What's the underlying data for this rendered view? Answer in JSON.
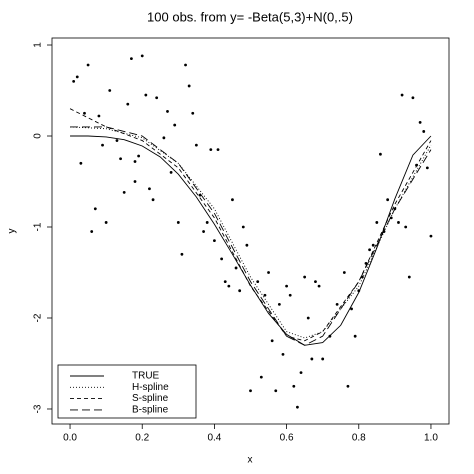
{
  "chart_data": {
    "type": "scatter",
    "title": "100 obs. from y= -Beta(5,3)+N(0,.5)",
    "xlabel": "x",
    "ylabel": "y",
    "xlim": [
      -0.05,
      1.05
    ],
    "ylim": [
      -3.165,
      1.077
    ],
    "xticks": [
      {
        "value": 0,
        "label": "0.0"
      },
      {
        "value": 0.2,
        "label": "0.2"
      },
      {
        "value": 0.4,
        "label": "0.4"
      },
      {
        "value": 0.6,
        "label": "0.6"
      },
      {
        "value": 0.8,
        "label": "0.8"
      },
      {
        "value": 1,
        "label": "1.0"
      }
    ],
    "yticks": [
      1,
      0,
      -1,
      -2,
      -3
    ],
    "legend": "bottom-left",
    "points": {
      "color": "#000",
      "x": [
        0.01,
        0.02,
        0.04,
        0.05,
        0.03,
        0.06,
        0.07,
        0.08,
        0.09,
        0.1,
        0.11,
        0.13,
        0.14,
        0.15,
        0.16,
        0.17,
        0.18,
        0.19,
        0.2,
        0.21,
        0.22,
        0.23,
        0.24,
        0.26,
        0.27,
        0.28,
        0.29,
        0.3,
        0.31,
        0.32,
        0.33,
        0.34,
        0.35,
        0.36,
        0.37,
        0.38,
        0.39,
        0.4,
        0.41,
        0.42,
        0.43,
        0.44,
        0.45,
        0.46,
        0.47,
        0.48,
        0.49,
        0.5,
        0.52,
        0.53,
        0.54,
        0.55,
        0.56,
        0.57,
        0.58,
        0.59,
        0.6,
        0.61,
        0.62,
        0.63,
        0.64,
        0.65,
        0.66,
        0.67,
        0.68,
        0.69,
        0.7,
        0.72,
        0.74,
        0.76,
        0.77,
        0.78,
        0.79,
        0.8,
        0.81,
        0.82,
        0.83,
        0.84,
        0.85,
        0.86,
        0.87,
        0.88,
        0.89,
        0.9,
        0.91,
        0.92,
        0.93,
        0.94,
        0.95,
        0.96,
        0.97,
        0.98,
        0.99,
        1.0,
        0.18
      ],
      "y": [
        0.6,
        0.65,
        0.25,
        0.78,
        -0.3,
        -1.05,
        -0.8,
        0.22,
        -0.1,
        -0.95,
        0.5,
        -0.05,
        -0.25,
        -0.62,
        0.35,
        0.85,
        -0.28,
        -0.22,
        0.88,
        0.45,
        -0.58,
        -0.7,
        0.42,
        -0.02,
        0.27,
        -0.4,
        0.12,
        -0.95,
        -1.3,
        0.78,
        0.55,
        0.25,
        -0.1,
        -0.65,
        -1.05,
        -0.95,
        -0.15,
        -1.15,
        -0.15,
        -1.35,
        -1.6,
        -1.65,
        -0.7,
        -1.45,
        -1.7,
        -1.0,
        -1.2,
        -2.8,
        -1.6,
        -2.65,
        -1.75,
        -1.5,
        -2.25,
        -2.8,
        -1.85,
        -2.4,
        -1.65,
        -1.75,
        -2.75,
        -2.98,
        -2.6,
        -1.55,
        -2.0,
        -2.45,
        -1.6,
        -1.65,
        -2.45,
        -2.2,
        -1.85,
        -1.5,
        -2.75,
        -1.9,
        -2.2,
        -1.7,
        -1.55,
        -1.4,
        -1.25,
        -1.2,
        -0.95,
        -0.2,
        -1.05,
        -0.7,
        -0.9,
        -0.8,
        -0.95,
        0.45,
        -1.0,
        -1.55,
        0.42,
        -0.32,
        0.15,
        0.05,
        -0.35,
        -1.1,
        -0.5
      ]
    },
    "lines": [
      {
        "name": "TRUE",
        "color": "#000",
        "dash": "none",
        "x": [
          0,
          0.05,
          0.1,
          0.15,
          0.2,
          0.25,
          0.3,
          0.35,
          0.4,
          0.45,
          0.5,
          0.55,
          0.6,
          0.65,
          0.7,
          0.75,
          0.8,
          0.85,
          0.9,
          0.95,
          1
        ],
        "y": [
          0,
          0,
          -0.01,
          -0.04,
          -0.11,
          -0.23,
          -0.42,
          -0.67,
          -0.97,
          -1.3,
          -1.64,
          -1.95,
          -2.18,
          -2.3,
          -2.27,
          -2.08,
          -1.72,
          -1.23,
          -0.69,
          -0.21,
          0
        ]
      },
      {
        "name": "H-spline",
        "color": "#000",
        "dash": "1,2",
        "x": [
          0,
          0.1,
          0.2,
          0.3,
          0.4,
          0.5,
          0.6,
          0.65,
          0.7,
          0.8,
          0.9,
          1
        ],
        "y": [
          0.1,
          0.08,
          -0.02,
          -0.3,
          -0.8,
          -1.55,
          -2.15,
          -2.22,
          -2.15,
          -1.65,
          -0.8,
          -0.1
        ]
      },
      {
        "name": "S-spline",
        "color": "#000",
        "dash": "4,3",
        "x": [
          0,
          0.1,
          0.2,
          0.3,
          0.4,
          0.5,
          0.6,
          0.65,
          0.7,
          0.8,
          0.9,
          1
        ],
        "y": [
          0.3,
          0.1,
          -0.05,
          -0.35,
          -0.9,
          -1.65,
          -2.2,
          -2.25,
          -2.15,
          -1.6,
          -0.75,
          -0.05
        ]
      },
      {
        "name": "B-spline",
        "color": "#000",
        "dash": "8,4",
        "x": [
          0,
          0.1,
          0.2,
          0.3,
          0.4,
          0.5,
          0.6,
          0.65,
          0.7,
          0.8,
          0.9,
          1
        ],
        "y": [
          0.1,
          0.1,
          0,
          -0.3,
          -0.85,
          -1.6,
          -2.2,
          -2.3,
          -2.2,
          -1.6,
          -0.8,
          -0.15
        ]
      }
    ]
  }
}
